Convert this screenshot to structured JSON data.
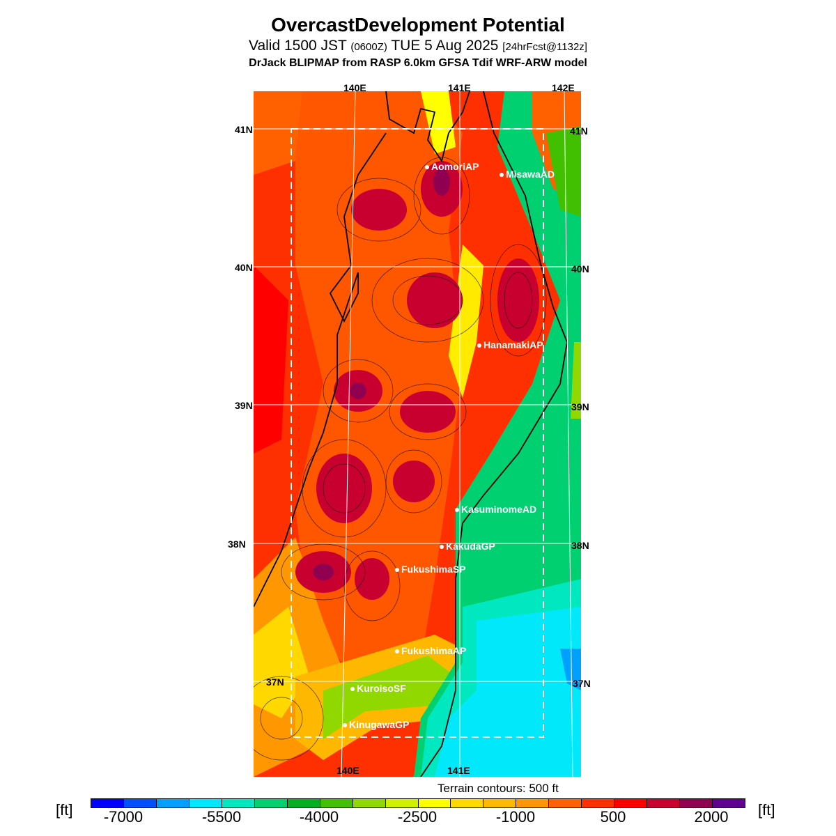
{
  "header": {
    "title": "OvercastDevelopment Potential",
    "valid_main": "Valid 1500 JST",
    "valid_utc": "(0600Z)",
    "valid_date": "TUE 5 Aug 2025",
    "forecast": "[24hrFcst@1132z]",
    "source": "DrJack BLIPMAP from RASP 6.0km GFSA Tdif WRF-ARW model"
  },
  "map": {
    "lon_labels": [
      "140E",
      "141E",
      "142E"
    ],
    "lat_labels": [
      "41N",
      "40N",
      "39N",
      "38N",
      "37N"
    ],
    "stations": [
      "AomoriAP",
      "MisawaAD",
      "HanamakiAP",
      "KasuminomeAD",
      "KakudaGP",
      "FukushimaSP",
      "FukushimaAP",
      "KuroisoSF",
      "KinugawaGP"
    ]
  },
  "legend": {
    "terrain_note": "Terrain contours: 500 ft",
    "unit": "[ft]",
    "tick_labels": [
      "-7000",
      "-5500",
      "-4000",
      "-2500",
      "-1000",
      "500",
      "2000"
    ],
    "colors": [
      "#0000ff",
      "#0050ff",
      "#00a0ff",
      "#00e8ff",
      "#00e8c0",
      "#00d070",
      "#00b020",
      "#40c000",
      "#90d800",
      "#d0f000",
      "#ffff00",
      "#ffd800",
      "#ffb800",
      "#ff9800",
      "#ff6000",
      "#ff3000",
      "#ff0000",
      "#c80030",
      "#900050",
      "#600090"
    ]
  }
}
